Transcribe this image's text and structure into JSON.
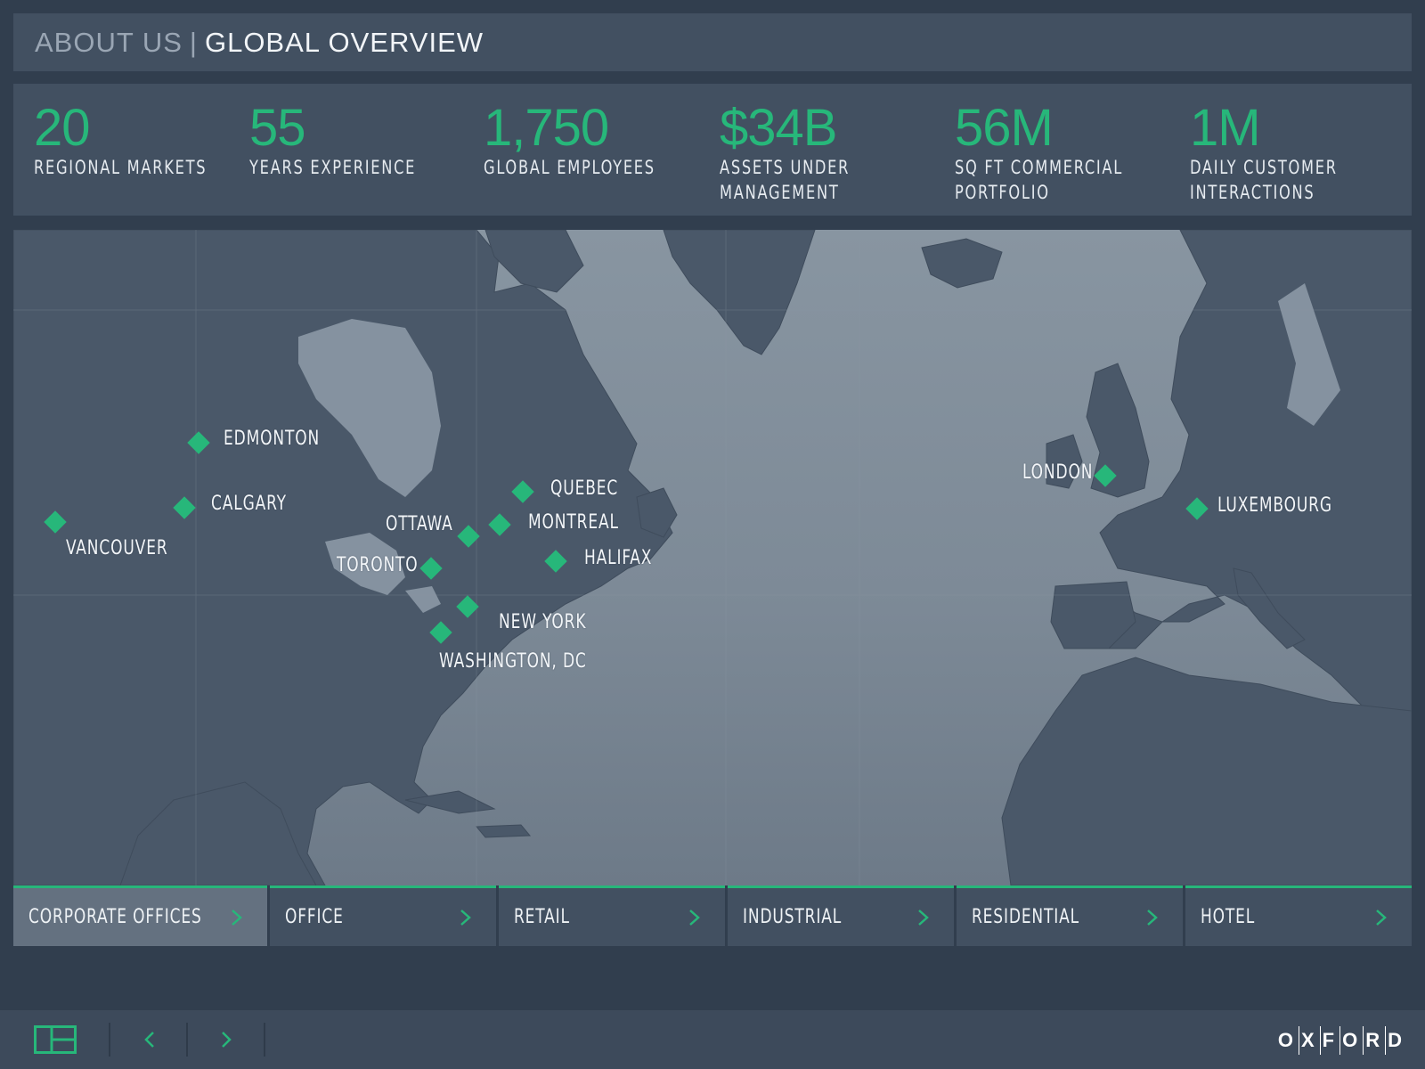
{
  "header": {
    "section": "ABOUT US",
    "separator": "|",
    "title": "GLOBAL OVERVIEW"
  },
  "stats": [
    {
      "value": "20",
      "label": "REGIONAL MARKETS"
    },
    {
      "value": "55",
      "label": "YEARS EXPERIENCE"
    },
    {
      "value": "1,750",
      "label": "GLOBAL EMPLOYEES"
    },
    {
      "value": "$34B",
      "label": "ASSETS UNDER\nMANAGEMENT"
    },
    {
      "value": "56M",
      "label": "SQ FT COMMERCIAL\nPORTFOLIO"
    },
    {
      "value": "1M",
      "label": "DAILY CUSTOMER\nINTERACTIONS"
    }
  ],
  "cities": [
    {
      "name": "EDMONTON"
    },
    {
      "name": "CALGARY"
    },
    {
      "name": "VANCOUVER"
    },
    {
      "name": "OTTAWA"
    },
    {
      "name": "QUEBEC"
    },
    {
      "name": "MONTREAL"
    },
    {
      "name": "TORONTO"
    },
    {
      "name": "HALIFAX"
    },
    {
      "name": "NEW YORK"
    },
    {
      "name": "WASHINGTON, DC"
    },
    {
      "name": "LONDON"
    },
    {
      "name": "LUXEMBOURG"
    }
  ],
  "categories": [
    {
      "label": "CORPORATE OFFICES",
      "active": true
    },
    {
      "label": "OFFICE",
      "active": false
    },
    {
      "label": "RETAIL",
      "active": false
    },
    {
      "label": "INDUSTRIAL",
      "active": false
    },
    {
      "label": "RESIDENTIAL",
      "active": false
    },
    {
      "label": "HOTEL",
      "active": false
    }
  ],
  "footer": {
    "layout_icon": "layout-grid-icon",
    "prev_icon": "chevron-left-icon",
    "next_icon": "chevron-right-icon",
    "logo_letters": [
      "O",
      "X",
      "F",
      "O",
      "R",
      "D"
    ]
  },
  "colors": {
    "accent": "#27b77a",
    "panel": "#425061",
    "background": "#313e4e",
    "land": "#4a5869",
    "water": "#8290a0"
  }
}
